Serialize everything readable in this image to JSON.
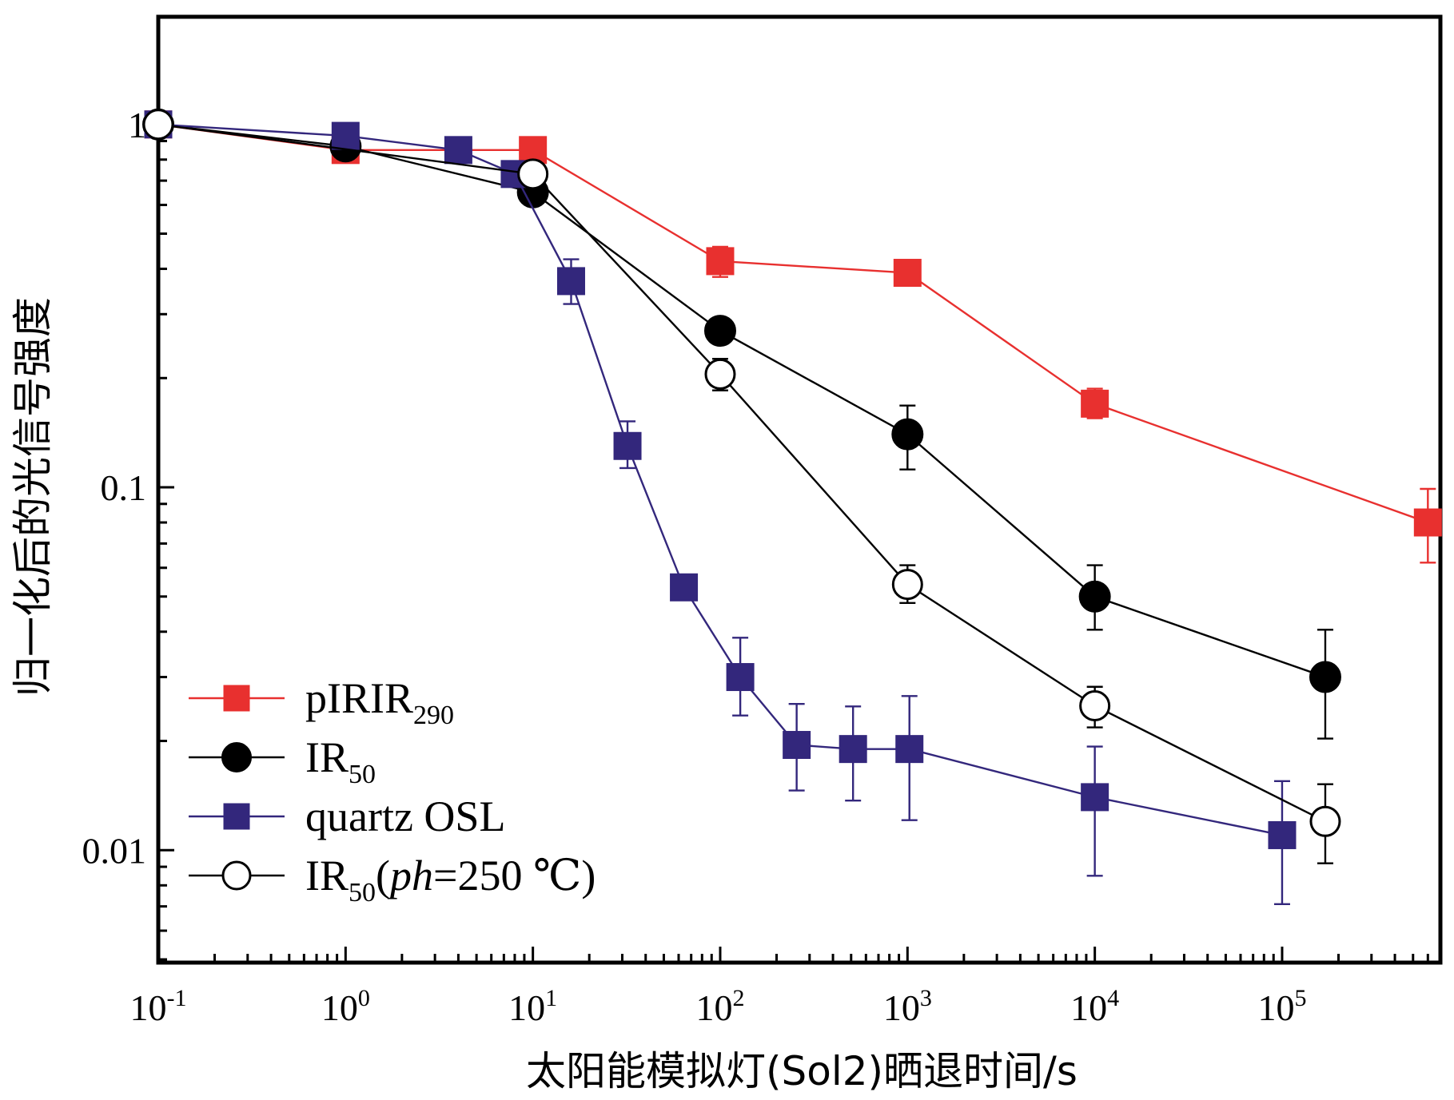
{
  "chart_data": {
    "type": "scatter",
    "title": "",
    "xlabel": "太阳能模拟灯(Sol2)晒退时间/s",
    "ylabel": "归一化后的光信号强度",
    "x_scale": "log",
    "y_scale": "log",
    "xlim": [
      0.1,
      700000
    ],
    "ylim": [
      0.0049,
      1.98
    ],
    "x_ticks": [
      {
        "base": "10",
        "exp": "-1"
      },
      {
        "base": "10",
        "exp": "0"
      },
      {
        "base": "10",
        "exp": "1"
      },
      {
        "base": "10",
        "exp": "2"
      },
      {
        "base": "10",
        "exp": "3"
      },
      {
        "base": "10",
        "exp": "4"
      },
      {
        "base": "10",
        "exp": "5"
      }
    ],
    "y_ticks": [
      "1",
      "0.1",
      "0.01"
    ],
    "grid": false,
    "legend_position": "bottom-left",
    "series": [
      {
        "name": "pIRIR",
        "name_sub": "290",
        "color": "#e8302f",
        "marker": "square-filled",
        "x": [
          0.1,
          1,
          10,
          100,
          1000,
          10000,
          600000
        ],
        "y": [
          1.0,
          0.85,
          0.85,
          0.42,
          0.39,
          0.17,
          0.08
        ],
        "yerr_low": [
          null,
          null,
          null,
          0.38,
          null,
          0.155,
          0.062
        ],
        "yerr_high": [
          null,
          null,
          null,
          0.46,
          null,
          0.187,
          0.099
        ]
      },
      {
        "name": "IR",
        "name_sub": "50",
        "color": "#000000",
        "marker": "circle-filled",
        "x": [
          0.1,
          1,
          10,
          100,
          1000,
          10000,
          170000
        ],
        "y": [
          1.0,
          0.87,
          0.65,
          0.27,
          0.14,
          0.05,
          0.03
        ],
        "yerr_low": [
          null,
          null,
          null,
          null,
          0.112,
          0.0405,
          0.0203
        ],
        "yerr_high": [
          null,
          null,
          null,
          null,
          0.168,
          0.061,
          0.0405
        ]
      },
      {
        "name": "quartz OSL",
        "name_sub": "",
        "color": "#33277c",
        "marker": "square-filled",
        "x": [
          0.1,
          1,
          4,
          8,
          16,
          32,
          64,
          128,
          256,
          512,
          1024,
          10000,
          100000
        ],
        "y": [
          1.0,
          0.93,
          0.85,
          0.73,
          0.37,
          0.13,
          0.053,
          0.03,
          0.0195,
          0.019,
          0.019,
          0.014,
          0.011
        ],
        "yerr_low": [
          null,
          null,
          null,
          null,
          0.32,
          0.113,
          null,
          0.0235,
          0.0146,
          0.0137,
          0.0121,
          0.0085,
          0.0071
        ],
        "yerr_high": [
          null,
          null,
          null,
          null,
          0.425,
          0.152,
          null,
          0.0385,
          0.0253,
          0.0249,
          0.0266,
          0.0193,
          0.0155
        ]
      },
      {
        "name": "IR",
        "name_sub": "50",
        "name_suffix_pre": "(",
        "name_suffix_italic": "ph",
        "name_suffix_post": "=250 ℃)",
        "color": "#000000",
        "marker": "circle-open",
        "x": [
          0.1,
          10,
          100,
          1000,
          10000,
          170000
        ],
        "y": [
          1.0,
          0.73,
          0.205,
          0.054,
          0.025,
          0.012
        ],
        "yerr_low": [
          null,
          null,
          0.185,
          0.048,
          0.0218,
          0.0092
        ],
        "yerr_high": [
          null,
          null,
          0.226,
          0.061,
          0.0282,
          0.0152
        ]
      }
    ]
  }
}
